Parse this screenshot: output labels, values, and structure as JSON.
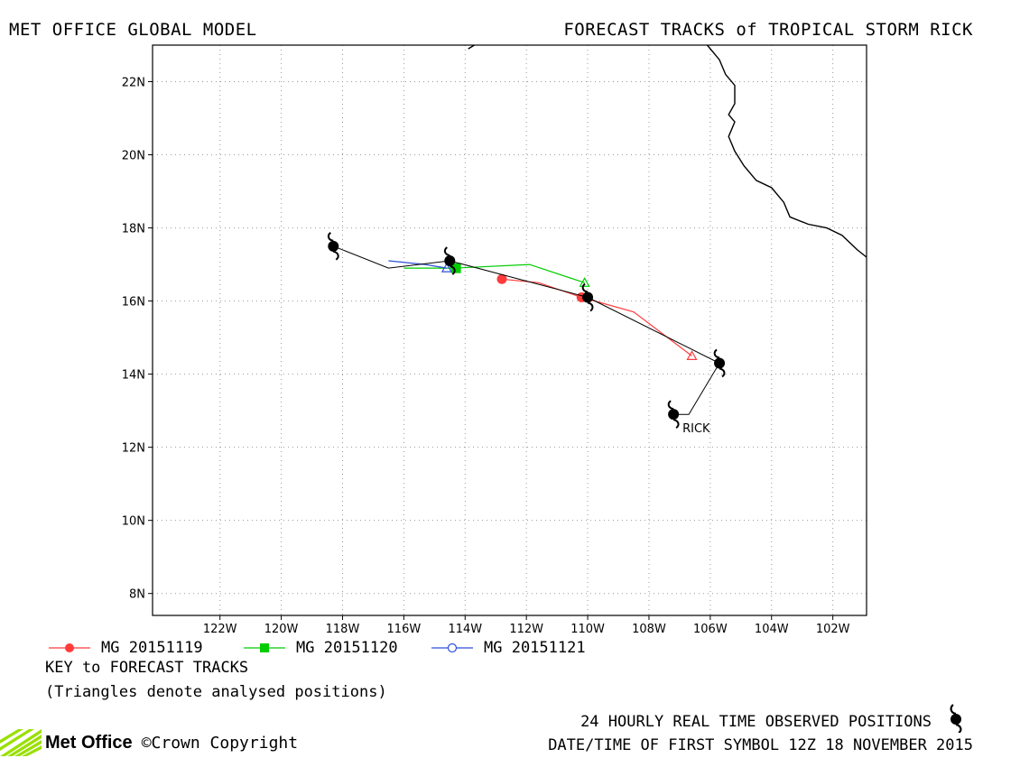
{
  "header": {
    "left": "MET OFFICE GLOBAL MODEL",
    "right": "FORECAST TRACKS of TROPICAL STORM RICK"
  },
  "map": {
    "lon_range": [
      -124.2,
      -100.9
    ],
    "lat_range": [
      7.4,
      23.0
    ],
    "lat_ticks": [
      {
        "v": 8,
        "label": "8N"
      },
      {
        "v": 10,
        "label": "10N"
      },
      {
        "v": 12,
        "label": "12N"
      },
      {
        "v": 14,
        "label": "14N"
      },
      {
        "v": 16,
        "label": "16N"
      },
      {
        "v": 18,
        "label": "18N"
      },
      {
        "v": 20,
        "label": "20N"
      },
      {
        "v": 22,
        "label": "22N"
      }
    ],
    "lon_ticks": [
      {
        "v": -122,
        "label": "122W"
      },
      {
        "v": -120,
        "label": "120W"
      },
      {
        "v": -118,
        "label": "118W"
      },
      {
        "v": -116,
        "label": "116W"
      },
      {
        "v": -114,
        "label": "114W"
      },
      {
        "v": -112,
        "label": "112W"
      },
      {
        "v": -110,
        "label": "110W"
      },
      {
        "v": -108,
        "label": "108W"
      },
      {
        "v": -106,
        "label": "106W"
      },
      {
        "v": -104,
        "label": "104W"
      },
      {
        "v": -102,
        "label": "102W"
      }
    ],
    "coastline": [
      [
        [
          -113.9,
          22.9
        ],
        [
          -113.7,
          23.0
        ]
      ],
      [
        [
          -106.1,
          23.0
        ],
        [
          -105.7,
          22.6
        ],
        [
          -105.5,
          22.2
        ],
        [
          -105.2,
          21.9
        ],
        [
          -105.2,
          21.4
        ],
        [
          -105.4,
          21.1
        ],
        [
          -105.2,
          20.9
        ],
        [
          -105.4,
          20.5
        ],
        [
          -105.2,
          20.1
        ],
        [
          -104.9,
          19.7
        ],
        [
          -104.5,
          19.3
        ],
        [
          -104.0,
          19.1
        ],
        [
          -103.6,
          18.7
        ],
        [
          -103.4,
          18.3
        ],
        [
          -102.8,
          18.1
        ],
        [
          -102.2,
          18.0
        ],
        [
          -101.7,
          17.8
        ],
        [
          -101.2,
          17.4
        ],
        [
          -100.9,
          17.2
        ]
      ]
    ],
    "storm": {
      "label": "RICK",
      "observed": [
        {
          "lon": -107.2,
          "lat": 12.9
        },
        {
          "lon": -105.7,
          "lat": 14.3
        },
        {
          "lon": -110.0,
          "lat": 16.1
        },
        {
          "lon": -114.5,
          "lat": 17.1
        },
        {
          "lon": -118.3,
          "lat": 17.5
        }
      ],
      "observed_path": [
        {
          "lon": -107.2,
          "lat": 12.9
        },
        {
          "lon": -106.7,
          "lat": 12.9
        },
        {
          "lon": -105.7,
          "lat": 14.3
        },
        {
          "lon": -110.0,
          "lat": 16.1
        },
        {
          "lon": -114.5,
          "lat": 17.1
        },
        {
          "lon": -116.5,
          "lat": 16.9
        },
        {
          "lon": -118.3,
          "lat": 17.5
        }
      ]
    },
    "forecasts": [
      {
        "name": "MG 20151119",
        "color": "#ff3b3b",
        "marker": "circle",
        "track": [
          {
            "lon": -106.6,
            "lat": 14.5
          },
          {
            "lon": -108.5,
            "lat": 15.7
          },
          {
            "lon": -110.2,
            "lat": 16.1
          },
          {
            "lon": -111.6,
            "lat": 16.5
          },
          {
            "lon": -112.8,
            "lat": 16.6
          }
        ],
        "start_analysed": {
          "lon": -106.6,
          "lat": 14.5
        },
        "markers": [
          {
            "lon": -110.2,
            "lat": 16.1
          },
          {
            "lon": -112.8,
            "lat": 16.6
          }
        ]
      },
      {
        "name": "MG 20151120",
        "color": "#00cc00",
        "marker": "square",
        "track": [
          {
            "lon": -110.1,
            "lat": 16.5
          },
          {
            "lon": -111.9,
            "lat": 17.0
          },
          {
            "lon": -114.3,
            "lat": 16.9
          },
          {
            "lon": -116.0,
            "lat": 16.9
          }
        ],
        "start_analysed": {
          "lon": -110.1,
          "lat": 16.5
        },
        "markers": [
          {
            "lon": -114.3,
            "lat": 16.9
          }
        ]
      },
      {
        "name": "MG 20151121",
        "color": "#2d4fd6",
        "marker": "open-circle",
        "track": [
          {
            "lon": -114.6,
            "lat": 16.9
          },
          {
            "lon": -115.3,
            "lat": 17.0
          },
          {
            "lon": -116.5,
            "lat": 17.1
          }
        ],
        "start_analysed": {
          "lon": -114.6,
          "lat": 16.9
        },
        "markers": []
      }
    ]
  },
  "key": {
    "title": "KEY to FORECAST TRACKS",
    "note": "(Triangles denote analysed positions)"
  },
  "footer": {
    "observed_label": "24 HOURLY REAL TIME OBSERVED POSITIONS",
    "date_label": "DATE/TIME OF FIRST SYMBOL 12Z 18 NOVEMBER 2015",
    "logo_text": "Met Office",
    "copyright": "©Crown Copyright"
  },
  "icons": {
    "observed_symbol": "hurricane-symbol-icon",
    "logo": "met-office-logo-icon"
  }
}
